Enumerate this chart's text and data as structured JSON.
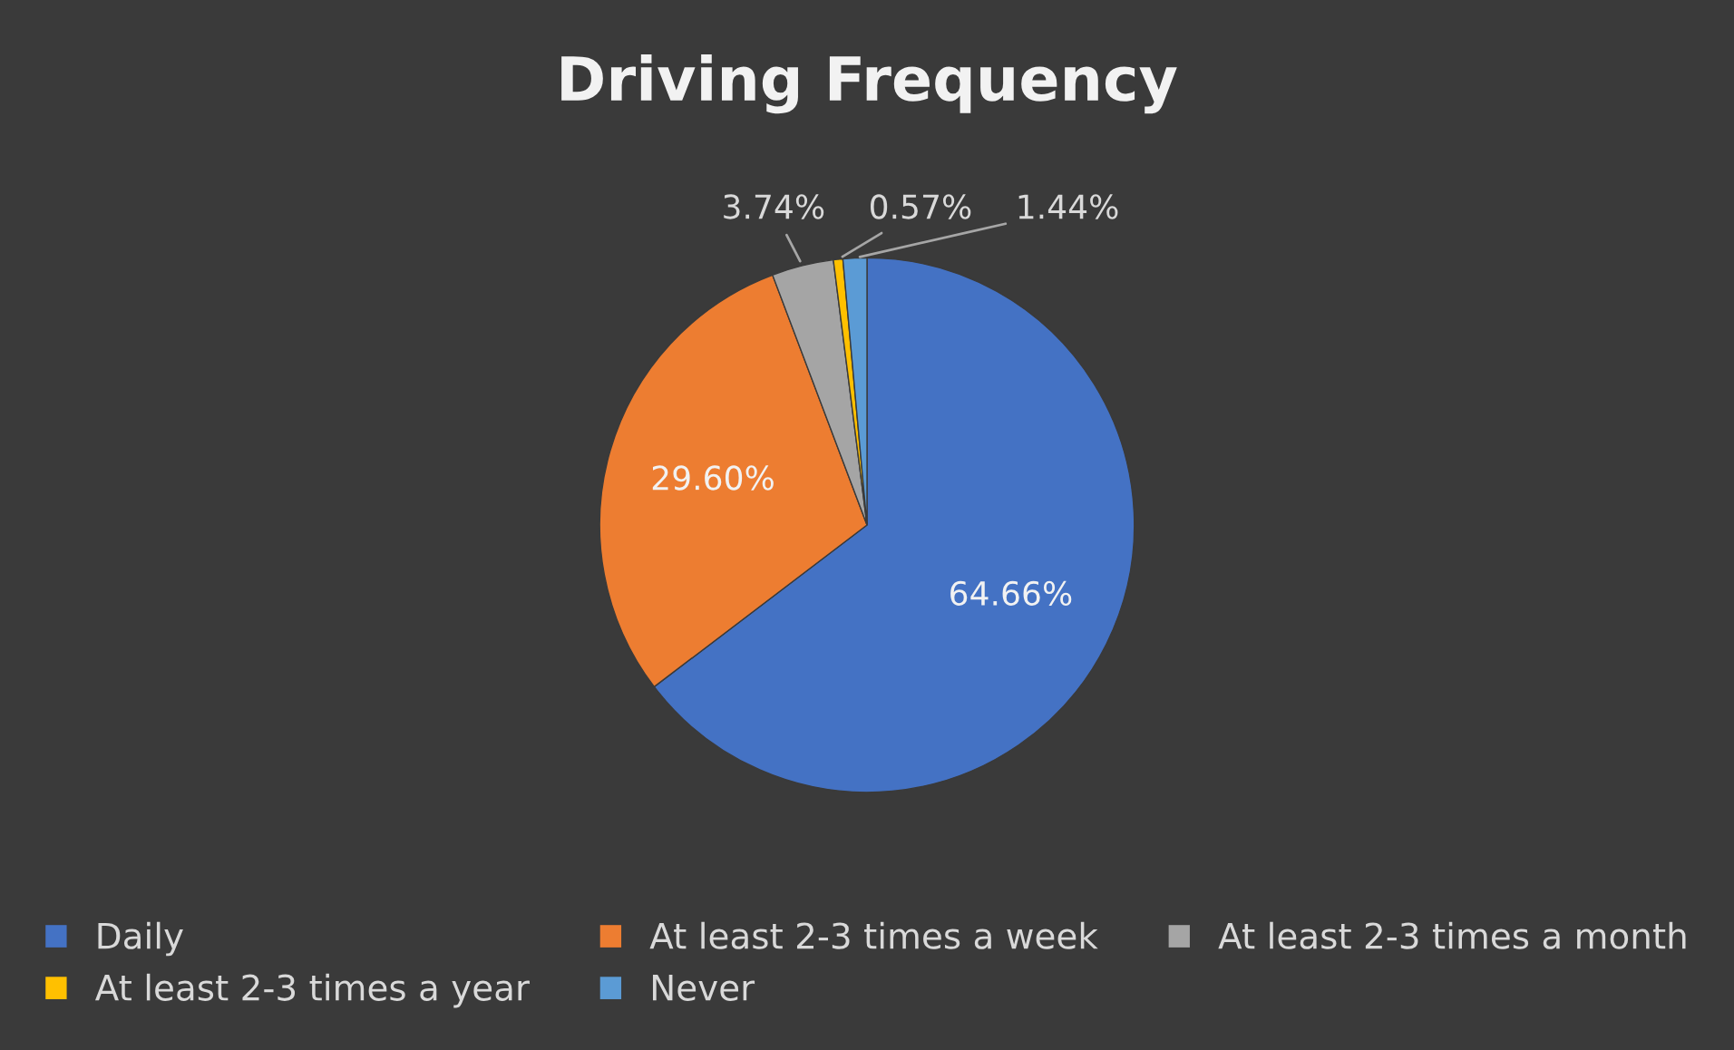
{
  "chart_data": {
    "type": "pie",
    "title": "Driving Frequency",
    "categories": [
      "Daily",
      "At least 2-3 times a week",
      "At least 2-3 times a month",
      "At least 2-3 times a year",
      "Never"
    ],
    "values": [
      64.66,
      29.6,
      3.74,
      0.57,
      1.44
    ],
    "value_labels": [
      "64.66%",
      "29.60%",
      "3.74%",
      "0.57%",
      "1.44%"
    ],
    "colors": [
      "#4472c4",
      "#ed7d31",
      "#a5a5a5",
      "#ffc000",
      "#5b9bd5"
    ],
    "legend": "bottom"
  }
}
